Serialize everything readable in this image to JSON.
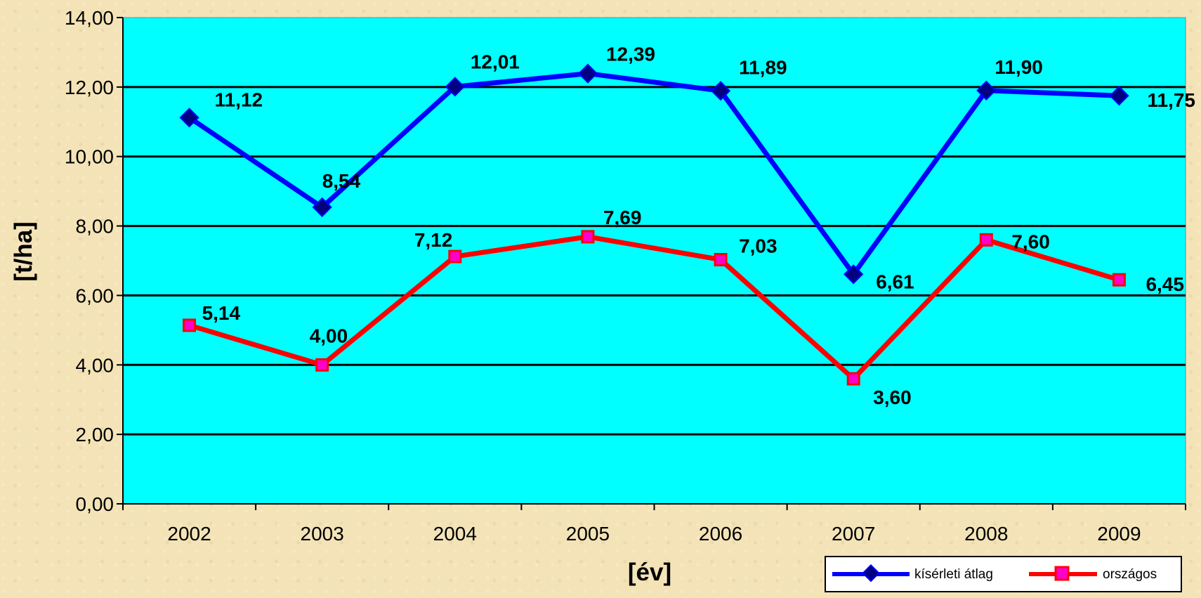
{
  "chart_data": {
    "type": "line",
    "title": "",
    "xlabel": "[év]",
    "ylabel": "[t/ha]",
    "categories": [
      "2002",
      "2003",
      "2004",
      "2005",
      "2006",
      "2007",
      "2008",
      "2009"
    ],
    "ylim": [
      0,
      14
    ],
    "yticks": [
      "0,00",
      "2,00",
      "4,00",
      "6,00",
      "8,00",
      "10,00",
      "12,00",
      "14,00"
    ],
    "grid": true,
    "legend_position": "bottom-right",
    "series": [
      {
        "name": "kísérleti átlag",
        "color": "#0000ff",
        "marker": "diamond",
        "values": [
          11.12,
          8.54,
          12.01,
          12.39,
          11.89,
          6.61,
          11.9,
          11.75
        ],
        "labels": [
          "11,12",
          "8,54",
          "12,01",
          "12,39",
          "11,89",
          "6,61",
          "11,90",
          "11,75"
        ]
      },
      {
        "name": "országos",
        "color": "#ff0000",
        "marker": "square",
        "marker_fill": "#ff00cc",
        "values": [
          5.14,
          4.0,
          7.12,
          7.69,
          7.03,
          3.6,
          7.6,
          6.45
        ],
        "labels": [
          "5,14",
          "4,00",
          "7,12",
          "7,69",
          "7,03",
          "3,60",
          "7,60",
          "6,45"
        ]
      }
    ]
  },
  "colors": {
    "plot_bg": "#00ffff",
    "page_bg": "#f3e3b7",
    "grid": "#000000"
  }
}
